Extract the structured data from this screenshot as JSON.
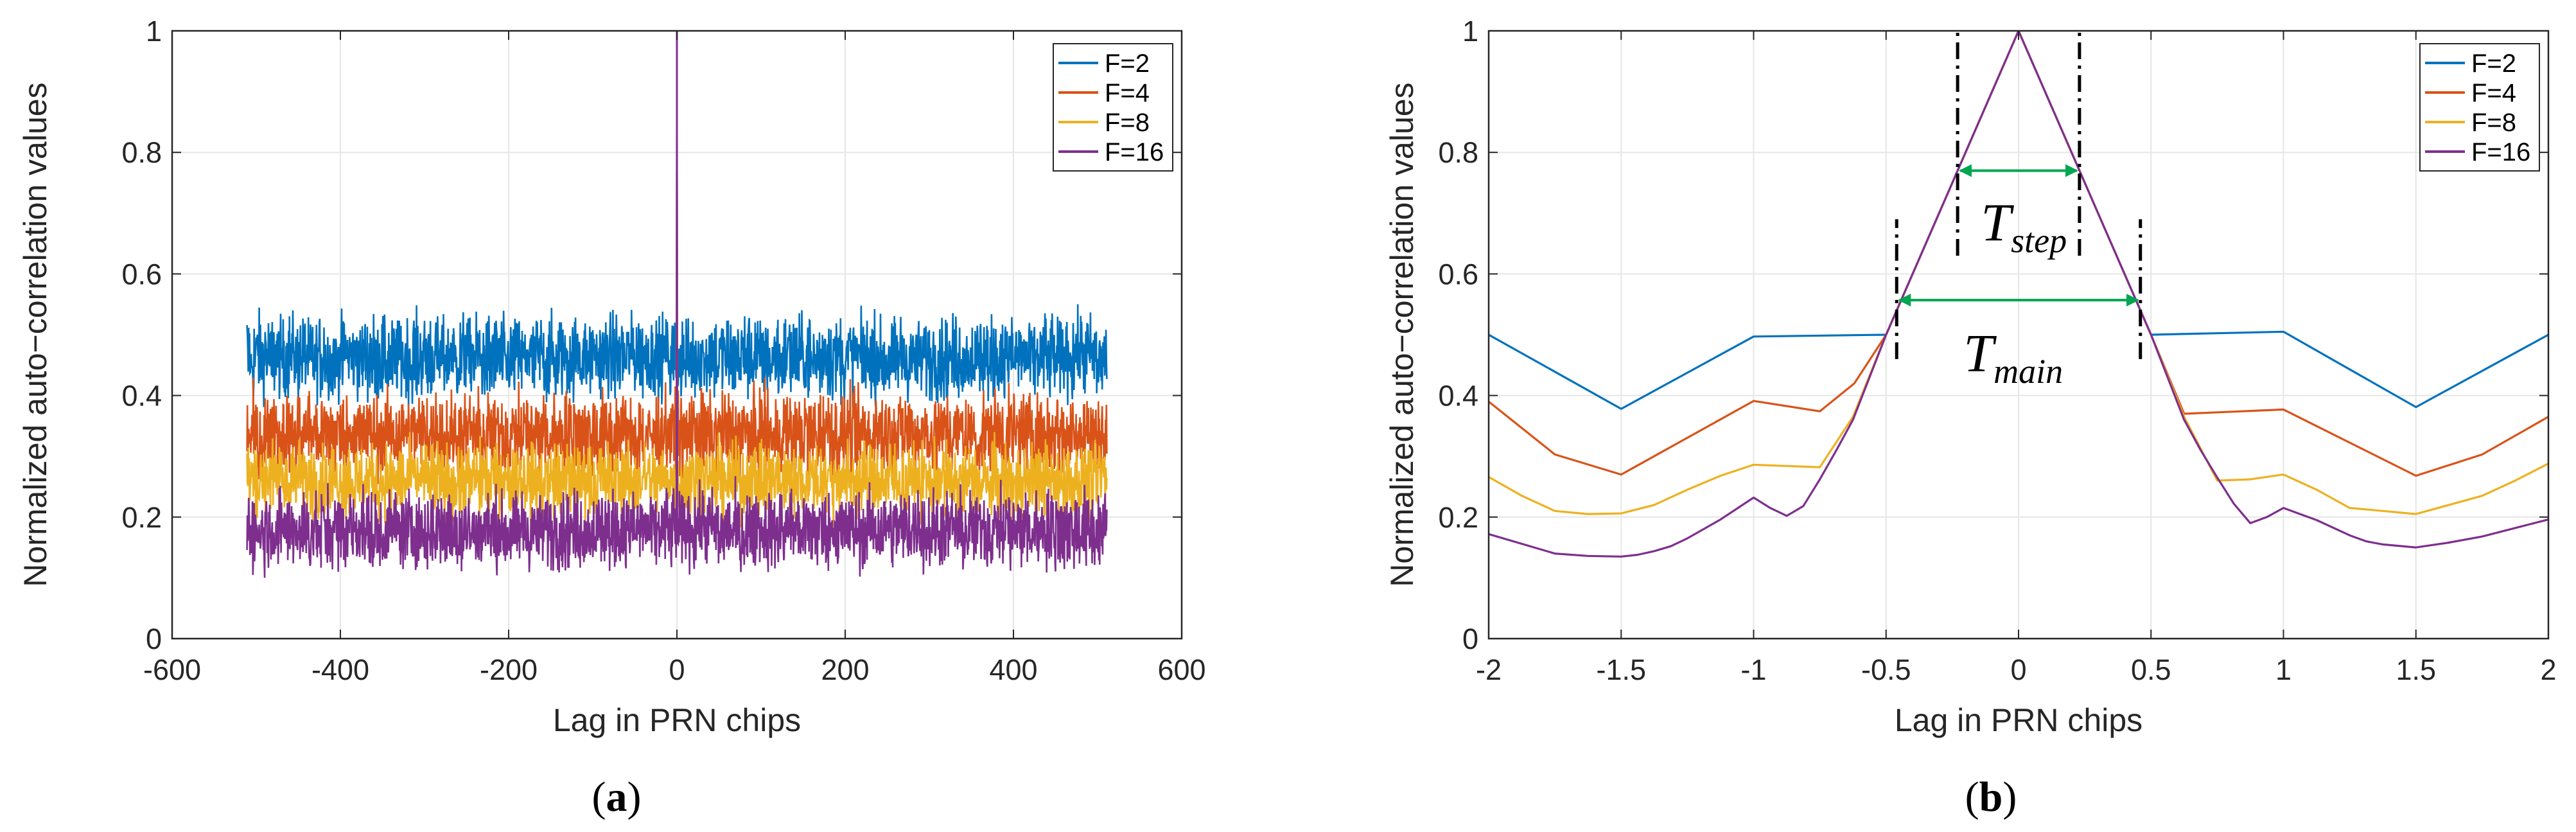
{
  "chart_data": [
    {
      "type": "line",
      "panel": "(a)",
      "panel_letter": "a",
      "xlabel": "Lag in PRN chips",
      "ylabel": "Normalized auto−correlation values",
      "xlim": [
        -600,
        600
      ],
      "ylim": [
        0,
        1
      ],
      "xticks": [
        -600,
        -400,
        -200,
        0,
        200,
        400,
        600
      ],
      "xtick_labels": [
        "-600",
        "-400",
        "-200",
        "0",
        "200",
        "400",
        "600"
      ],
      "yticks": [
        0,
        0.2,
        0.4,
        0.6,
        0.8,
        1
      ],
      "ytick_labels": [
        "0",
        "0.2",
        "0.4",
        "0.6",
        "0.8",
        "1"
      ],
      "grid": true,
      "legend_position": "top-right",
      "lag_range": [
        -511,
        511
      ],
      "peak": {
        "x": 0,
        "y": 1
      },
      "series": [
        {
          "name": "F=2",
          "color": "#0072BD",
          "noise_band": [
            0.38,
            0.56
          ],
          "mean": 0.45
        },
        {
          "name": "F=4",
          "color": "#D95319",
          "noise_band": [
            0.25,
            0.43
          ],
          "mean": 0.33
        },
        {
          "name": "F=8",
          "color": "#EDB120",
          "noise_band": [
            0.18,
            0.34
          ],
          "mean": 0.26
        },
        {
          "name": "F=16",
          "color": "#7E2F8E",
          "noise_band": [
            0.1,
            0.27
          ],
          "mean": 0.17
        }
      ]
    },
    {
      "type": "line",
      "panel": "(b)",
      "panel_letter": "b",
      "xlabel": "Lag in PRN chips",
      "ylabel": "Normalized auto−correlation values",
      "xlim": [
        -2,
        2
      ],
      "ylim": [
        0,
        1
      ],
      "xticks": [
        -2,
        -1.5,
        -1,
        -0.5,
        0,
        0.5,
        1,
        1.5,
        2
      ],
      "xtick_labels": [
        "-2",
        "-1.5",
        "-1",
        "-0.5",
        "0",
        "0.5",
        "1",
        "1.5",
        "2"
      ],
      "yticks": [
        0,
        0.2,
        0.4,
        0.6,
        0.8,
        1
      ],
      "ytick_labels": [
        "0",
        "0.2",
        "0.4",
        "0.6",
        "0.8",
        "1"
      ],
      "grid": true,
      "legend_position": "top-right",
      "series": [
        {
          "name": "F=2",
          "color": "#0072BD",
          "x": [
            -2,
            -1.5,
            -1,
            -0.5,
            0,
            0.5,
            1,
            1.5,
            2
          ],
          "y": [
            0.5,
            0.378,
            0.497,
            0.5,
            1.0,
            0.5,
            0.505,
            0.381,
            0.5
          ]
        },
        {
          "name": "F=4",
          "color": "#D95319",
          "x": [
            -2,
            -1.75,
            -1.5,
            -1,
            -0.75,
            -0.62,
            -0.5,
            0,
            0.5,
            0.625,
            1,
            1.5,
            1.75,
            2
          ],
          "y": [
            0.39,
            0.303,
            0.27,
            0.391,
            0.374,
            0.42,
            0.5,
            1.0,
            0.5,
            0.37,
            0.377,
            0.268,
            0.303,
            0.365
          ]
        },
        {
          "name": "F=8",
          "color": "#EDB120",
          "x": [
            -2,
            -1.875,
            -1.75,
            -1.625,
            -1.5,
            -1.375,
            -1.25,
            -1.125,
            -1,
            -0.875,
            -0.75,
            -0.625,
            -0.5,
            0,
            0.5,
            0.625,
            0.75,
            0.875,
            1,
            1.125,
            1.25,
            1.375,
            1.5,
            1.625,
            1.75,
            1.875,
            2
          ],
          "y": [
            0.266,
            0.235,
            0.21,
            0.205,
            0.206,
            0.22,
            0.245,
            0.268,
            0.286,
            0.284,
            0.282,
            0.365,
            0.5,
            1.0,
            0.5,
            0.365,
            0.26,
            0.262,
            0.27,
            0.245,
            0.215,
            0.21,
            0.205,
            0.22,
            0.235,
            0.26,
            0.288
          ]
        },
        {
          "name": "F=16",
          "color": "#7E2F8E",
          "x": [
            -2,
            -1.75,
            -1.625,
            -1.5,
            -1.4375,
            -1.375,
            -1.3125,
            -1.25,
            -1.125,
            -1,
            -0.9375,
            -0.875,
            -0.8125,
            -0.75,
            -0.6875,
            -0.625,
            -0.5,
            0,
            0.5,
            0.625,
            0.6875,
            0.75,
            0.8125,
            0.875,
            0.9375,
            1,
            1.0625,
            1.125,
            1.25,
            1.3125,
            1.375,
            1.5,
            1.625,
            1.75,
            1.875,
            2
          ],
          "y": [
            0.172,
            0.14,
            0.136,
            0.135,
            0.138,
            0.144,
            0.152,
            0.165,
            0.196,
            0.232,
            0.215,
            0.202,
            0.218,
            0.262,
            0.31,
            0.36,
            0.5,
            1.0,
            0.5,
            0.36,
            0.31,
            0.265,
            0.222,
            0.19,
            0.2,
            0.215,
            0.205,
            0.195,
            0.17,
            0.16,
            0.155,
            0.15,
            0.158,
            0.168,
            0.182,
            0.196
          ]
        }
      ],
      "annotations": {
        "t_step": {
          "main": "T",
          "sub": "step",
          "x_range": [
            -0.23,
            0.23
          ],
          "y": 0.77,
          "guide_y_range": [
            0.63,
            1.0
          ]
        },
        "t_main": {
          "main": "T",
          "sub": "main",
          "x_range": [
            -0.46,
            0.46
          ],
          "y": 0.557,
          "guide_y_range": [
            0.46,
            0.69
          ]
        },
        "arrow_color": "#00A651"
      }
    }
  ]
}
